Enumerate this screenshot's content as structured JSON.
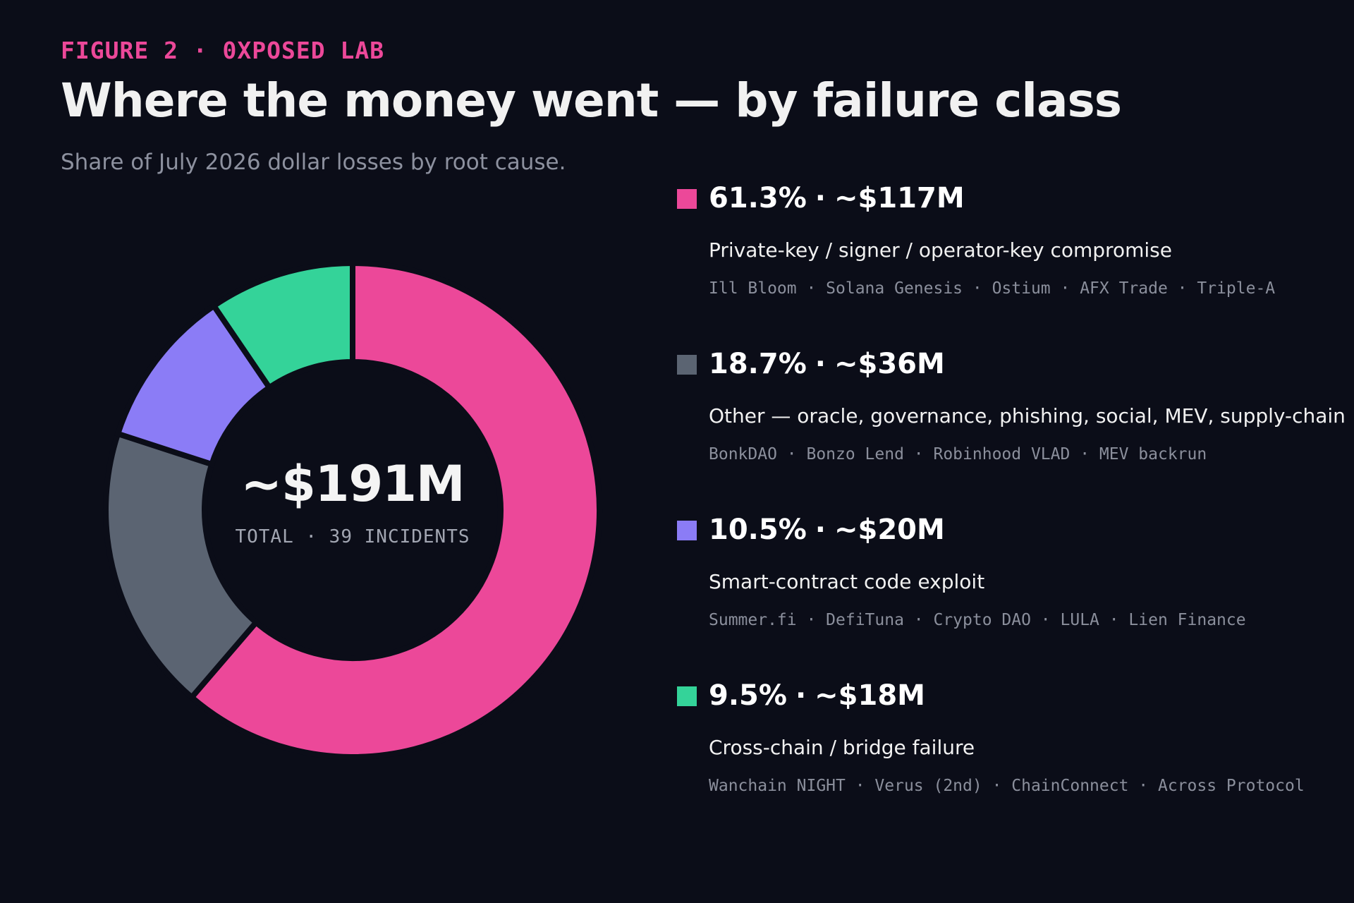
{
  "header": {
    "eyebrow": "FIGURE 2 · 0XPOSED LAB",
    "title": "Where the money went — by failure class",
    "subtitle": "Share of July 2026 dollar losses by root cause."
  },
  "center": {
    "total": "~$191M",
    "caption": "TOTAL · 39 INCIDENTS"
  },
  "chart_data": {
    "type": "pie",
    "variant": "donut",
    "title": "Where the money went — by failure class",
    "subtitle": "Share of July 2026 dollar losses by root cause.",
    "unit": "% of dollar losses",
    "legend_position": "right",
    "slices": [
      {
        "label": "Private-key / signer / operator-key compromise",
        "percent": 61.3,
        "percent_text": "61.3%",
        "amount_text": "~$117M",
        "amount_musd": 117,
        "color": "#ec4899",
        "incidents": [
          "Ill Bloom",
          "Solana Genesis",
          "Ostium",
          "AFX Trade",
          "Triple-A"
        ]
      },
      {
        "label": "Other — oracle, governance, phishing, social, MEV, supply-chain",
        "percent": 18.7,
        "percent_text": "18.7%",
        "amount_text": "~$36M",
        "amount_musd": 36,
        "color": "#5b6472",
        "incidents": [
          "BonkDAO",
          "Bonzo Lend",
          "Robinhood VLAD",
          "MEV backrun"
        ]
      },
      {
        "label": "Smart-contract code exploit",
        "percent": 10.5,
        "percent_text": "10.5%",
        "amount_text": "~$20M",
        "amount_musd": 20,
        "color": "#8b7cf6",
        "incidents": [
          "Summer.fi",
          "DefiTuna",
          "Crypto DAO",
          "LULA",
          "Lien Finance"
        ]
      },
      {
        "label": "Cross-chain / bridge failure",
        "percent": 9.5,
        "percent_text": "9.5%",
        "amount_text": "~$18M",
        "amount_musd": 18,
        "color": "#34d399",
        "incidents": [
          "Wanchain NIGHT",
          "Verus (2nd)",
          "ChainConnect",
          "Across Protocol"
        ]
      }
    ],
    "total_text": "~$191M",
    "total_musd": 191,
    "incident_count": 39
  }
}
